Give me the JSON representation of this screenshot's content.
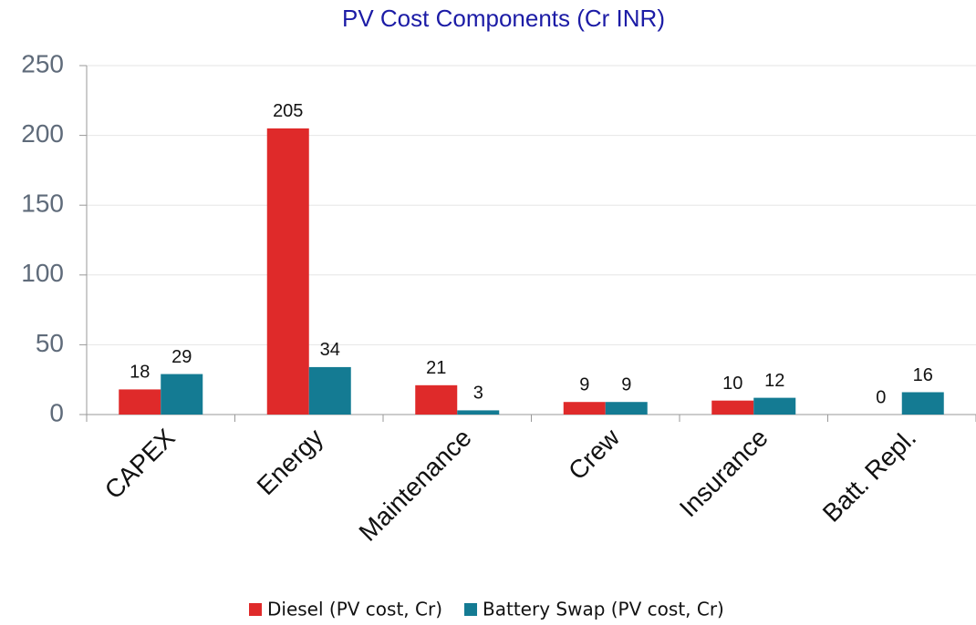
{
  "chart_data": {
    "type": "bar",
    "title": "PV Cost Components (Cr INR)",
    "categories": [
      "CAPEX",
      "Energy",
      "Maintenance",
      "Crew",
      "Insurance",
      "Batt. Repl."
    ],
    "series": [
      {
        "name": "Diesel (PV cost, Cr)",
        "color": "#df2a2a",
        "values": [
          18,
          205,
          21,
          9,
          10,
          0
        ]
      },
      {
        "name": "Battery Swap (PV cost, Cr)",
        "color": "#147b93",
        "values": [
          29,
          34,
          3,
          9,
          12,
          16
        ]
      }
    ],
    "ylim": [
      0,
      250
    ],
    "yticks": [
      0,
      50,
      100,
      150,
      200,
      250
    ],
    "grid": true,
    "legend": "bottom"
  }
}
